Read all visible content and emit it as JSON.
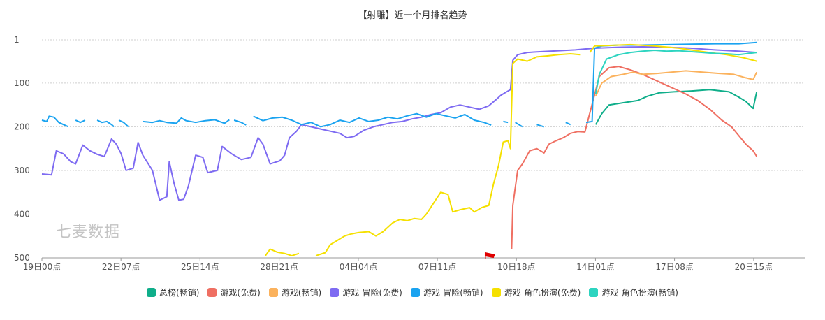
{
  "chart_data": {
    "type": "line",
    "title": "【射雕】近一个月排名趋势",
    "watermark": "七麦数据",
    "y_inverted": true,
    "ylim": [
      1,
      500
    ],
    "yticks": [
      1,
      100,
      200,
      300,
      400,
      500
    ],
    "x_range_days": [
      0,
      31.75
    ],
    "xticks": [
      {
        "label": "19日00点",
        "day": 0
      },
      {
        "label": "22日07点",
        "day": 3.29
      },
      {
        "label": "25日14点",
        "day": 6.58
      },
      {
        "label": "28日21点",
        "day": 9.875
      },
      {
        "label": "04日04点",
        "day": 13.17
      },
      {
        "label": "07日11点",
        "day": 16.46
      },
      {
        "label": "10日18点",
        "day": 19.75
      },
      {
        "label": "14日01点",
        "day": 23.04
      },
      {
        "label": "17日08点",
        "day": 26.33
      },
      {
        "label": "20日15点",
        "day": 29.625
      }
    ],
    "grid": true,
    "legend_position": "bottom",
    "marker_day": 18.6,
    "series": [
      {
        "name": "总榜(畅销)",
        "color": "#0fae8a",
        "points": [
          [
            23.05,
            195
          ],
          [
            23.3,
            170
          ],
          [
            23.6,
            150
          ],
          [
            24.2,
            145
          ],
          [
            24.8,
            140
          ],
          [
            25.2,
            130
          ],
          [
            25.7,
            122
          ],
          [
            26.3,
            120
          ],
          [
            27.0,
            118
          ],
          [
            27.8,
            115
          ],
          [
            28.6,
            120
          ],
          [
            29.0,
            132
          ],
          [
            29.3,
            142
          ],
          [
            29.6,
            158
          ],
          [
            29.75,
            120
          ]
        ]
      },
      {
        "name": "游戏(免费)",
        "color": "#ef6f62",
        "points": [
          [
            19.55,
            480
          ],
          [
            19.6,
            380
          ],
          [
            19.8,
            300
          ],
          [
            20.0,
            285
          ],
          [
            20.3,
            255
          ],
          [
            20.6,
            250
          ],
          [
            20.9,
            260
          ],
          [
            21.1,
            240
          ],
          [
            21.4,
            232
          ],
          [
            21.7,
            225
          ],
          [
            22.0,
            215
          ],
          [
            22.3,
            211
          ],
          [
            22.6,
            212
          ],
          [
            23.2,
            85
          ],
          [
            23.6,
            65
          ],
          [
            24.0,
            62
          ],
          [
            24.5,
            70
          ],
          [
            25.0,
            80
          ],
          [
            25.6,
            95
          ],
          [
            26.2,
            110
          ],
          [
            26.8,
            125
          ],
          [
            27.3,
            140
          ],
          [
            27.8,
            160
          ],
          [
            28.3,
            185
          ],
          [
            28.7,
            200
          ],
          [
            29.0,
            220
          ],
          [
            29.3,
            240
          ],
          [
            29.6,
            255
          ],
          [
            29.75,
            268
          ]
        ]
      },
      {
        "name": "游戏(畅销)",
        "color": "#fbb25d",
        "points": [
          [
            23.05,
            130
          ],
          [
            23.3,
            100
          ],
          [
            23.7,
            85
          ],
          [
            24.2,
            80
          ],
          [
            24.6,
            75
          ],
          [
            25.0,
            80
          ],
          [
            25.6,
            78
          ],
          [
            26.2,
            75
          ],
          [
            26.8,
            72
          ],
          [
            27.5,
            75
          ],
          [
            28.2,
            78
          ],
          [
            28.8,
            80
          ],
          [
            29.3,
            88
          ],
          [
            29.6,
            92
          ],
          [
            29.75,
            75
          ]
        ]
      },
      {
        "name": "游戏-冒险(免费)",
        "color": "#7e6bf2",
        "points": [
          [
            0,
            308
          ],
          [
            0.4,
            310
          ],
          [
            0.6,
            255
          ],
          [
            0.9,
            262
          ],
          [
            1.2,
            280
          ],
          [
            1.4,
            285
          ],
          [
            1.7,
            242
          ],
          [
            2.0,
            255
          ],
          [
            2.3,
            263
          ],
          [
            2.6,
            268
          ],
          [
            2.9,
            228
          ],
          [
            3.1,
            240
          ],
          [
            3.3,
            262
          ],
          [
            3.5,
            300
          ],
          [
            3.8,
            295
          ],
          [
            4.0,
            236
          ],
          [
            4.2,
            265
          ],
          [
            4.6,
            300
          ],
          [
            4.9,
            368
          ],
          [
            5.2,
            360
          ],
          [
            5.3,
            280
          ],
          [
            5.5,
            330
          ],
          [
            5.7,
            368
          ],
          [
            5.9,
            366
          ],
          [
            6.1,
            335
          ],
          [
            6.4,
            265
          ],
          [
            6.7,
            270
          ],
          [
            6.9,
            305
          ],
          [
            7.3,
            300
          ],
          [
            7.5,
            245
          ],
          [
            7.9,
            262
          ],
          [
            8.3,
            275
          ],
          [
            8.7,
            270
          ],
          [
            9.0,
            225
          ],
          [
            9.2,
            240
          ],
          [
            9.5,
            285
          ],
          [
            9.9,
            278
          ],
          [
            10.1,
            265
          ],
          [
            10.3,
            225
          ],
          [
            10.6,
            210
          ],
          [
            10.8,
            195
          ],
          [
            11.2,
            200
          ],
          [
            11.6,
            205
          ],
          [
            12.0,
            210
          ],
          [
            12.4,
            215
          ],
          [
            12.7,
            225
          ],
          [
            13.0,
            222
          ],
          [
            13.4,
            208
          ],
          [
            13.8,
            200
          ],
          [
            14.2,
            195
          ],
          [
            14.6,
            190
          ],
          [
            15.0,
            188
          ],
          [
            15.4,
            182
          ],
          [
            15.8,
            178
          ],
          [
            16.2,
            172
          ],
          [
            16.6,
            168
          ],
          [
            17.0,
            155
          ],
          [
            17.4,
            150
          ],
          [
            17.8,
            155
          ],
          [
            18.2,
            160
          ],
          [
            18.6,
            152
          ],
          [
            18.9,
            138
          ],
          [
            19.1,
            128
          ],
          [
            19.4,
            118
          ],
          [
            19.5,
            115
          ],
          [
            19.6,
            48
          ],
          [
            19.8,
            35
          ],
          [
            20.2,
            30
          ],
          [
            20.8,
            28
          ],
          [
            21.5,
            26
          ],
          [
            22.2,
            24
          ],
          [
            22.6,
            22
          ],
          [
            23.1,
            20
          ],
          [
            24,
            18
          ],
          [
            25,
            17
          ],
          [
            26,
            18
          ],
          [
            27,
            20
          ],
          [
            28,
            24
          ],
          [
            29,
            27
          ],
          [
            29.75,
            30
          ]
        ]
      },
      {
        "name": "游戏-冒险(畅销)",
        "color": "#1aa3f0",
        "segments": [
          [
            [
              0,
              185
            ],
            [
              0.2,
              188
            ],
            [
              0.3,
              176
            ],
            [
              0.5,
              178
            ],
            [
              0.7,
              190
            ],
            [
              0.9,
              195
            ],
            [
              1.1,
              200
            ]
          ],
          [
            [
              1.4,
              185
            ],
            [
              1.6,
              190
            ],
            [
              1.8,
              185
            ]
          ],
          [
            [
              2.3,
              185
            ],
            [
              2.5,
              190
            ],
            [
              2.7,
              188
            ],
            [
              2.9,
              195
            ],
            [
              3.0,
              200
            ]
          ],
          [
            [
              3.2,
              185
            ],
            [
              3.4,
              190
            ],
            [
              3.6,
              200
            ]
          ],
          [
            [
              4.2,
              188
            ],
            [
              4.6,
              190
            ],
            [
              4.9,
              186
            ],
            [
              5.2,
              190
            ],
            [
              5.6,
              192
            ],
            [
              5.8,
              180
            ],
            [
              6.0,
              186
            ],
            [
              6.4,
              190
            ],
            [
              6.8,
              186
            ],
            [
              7.2,
              184
            ],
            [
              7.6,
              192
            ],
            [
              7.8,
              184
            ]
          ],
          [
            [
              8.0,
              185
            ],
            [
              8.3,
              190
            ],
            [
              8.5,
              196
            ]
          ],
          [
            [
              8.8,
              176
            ],
            [
              9.2,
              186
            ],
            [
              9.6,
              180
            ],
            [
              10.0,
              178
            ],
            [
              10.4,
              185
            ],
            [
              10.8,
              195
            ],
            [
              11.2,
              190
            ],
            [
              11.6,
              200
            ],
            [
              12.0,
              195
            ],
            [
              12.4,
              185
            ],
            [
              12.8,
              190
            ],
            [
              13.2,
              180
            ],
            [
              13.6,
              188
            ],
            [
              14.0,
              185
            ],
            [
              14.4,
              178
            ],
            [
              14.8,
              182
            ],
            [
              15.2,
              175
            ],
            [
              15.6,
              170
            ],
            [
              16.0,
              178
            ],
            [
              16.4,
              170
            ],
            [
              16.8,
              175
            ],
            [
              17.2,
              180
            ],
            [
              17.6,
              172
            ],
            [
              18.0,
              185
            ],
            [
              18.4,
              190
            ],
            [
              18.7,
              196
            ]
          ],
          [
            [
              19.2,
              188
            ],
            [
              19.4,
              190
            ]
          ],
          [
            [
              19.7,
              190
            ],
            [
              20.0,
              200
            ]
          ],
          [
            [
              20.6,
              195
            ],
            [
              20.9,
              200
            ]
          ],
          [
            [
              21.8,
              190
            ],
            [
              22.0,
              195
            ]
          ],
          [
            [
              22.65,
              190
            ],
            [
              22.9,
              188
            ],
            [
              23.0,
              20
            ],
            [
              23.3,
              15
            ],
            [
              24,
              13
            ],
            [
              25,
              13
            ],
            [
              26,
              12
            ],
            [
              27,
              11
            ],
            [
              28,
              10
            ],
            [
              29,
              10
            ],
            [
              29.75,
              7
            ]
          ]
        ]
      },
      {
        "name": "游戏-角色扮演(免费)",
        "color": "#f5e000",
        "segments": [
          [
            [
              9.3,
              495
            ],
            [
              9.5,
              480
            ],
            [
              9.8,
              487
            ],
            [
              10.1,
              490
            ],
            [
              10.4,
              495
            ],
            [
              10.7,
              490
            ]
          ],
          [
            [
              11.4,
              495
            ],
            [
              11.8,
              488
            ],
            [
              12.0,
              470
            ],
            [
              12.3,
              460
            ],
            [
              12.6,
              450
            ],
            [
              12.9,
              445
            ],
            [
              13.2,
              442
            ],
            [
              13.6,
              440
            ],
            [
              13.9,
              450
            ],
            [
              14.2,
              440
            ],
            [
              14.6,
              420
            ],
            [
              14.9,
              412
            ],
            [
              15.2,
              415
            ],
            [
              15.5,
              410
            ],
            [
              15.8,
              412
            ],
            [
              16.0,
              400
            ],
            [
              16.3,
              375
            ],
            [
              16.6,
              350
            ],
            [
              16.9,
              355
            ],
            [
              17.1,
              395
            ],
            [
              17.4,
              390
            ],
            [
              17.8,
              385
            ],
            [
              18.0,
              395
            ],
            [
              18.3,
              385
            ],
            [
              18.6,
              380
            ],
            [
              18.8,
              330
            ],
            [
              19.0,
              290
            ],
            [
              19.2,
              235
            ],
            [
              19.4,
              232
            ],
            [
              19.5,
              250
            ],
            [
              19.6,
              55
            ],
            [
              19.8,
              45
            ],
            [
              20.2,
              50
            ],
            [
              20.6,
              40
            ],
            [
              21.0,
              38
            ],
            [
              21.5,
              35
            ],
            [
              22.0,
              33
            ],
            [
              22.4,
              35
            ]
          ],
          [
            [
              22.8,
              30
            ],
            [
              23.0,
              15
            ],
            [
              23.5,
              14
            ],
            [
              24.5,
              12
            ],
            [
              25.5,
              15
            ],
            [
              26.5,
              20
            ],
            [
              27.5,
              28
            ],
            [
              28.5,
              35
            ],
            [
              29.2,
              42
            ],
            [
              29.75,
              50
            ]
          ]
        ]
      },
      {
        "name": "游戏-角色扮演(畅销)",
        "color": "#2dd4c0",
        "points": [
          [
            23.05,
            125
          ],
          [
            23.2,
            80
          ],
          [
            23.5,
            45
          ],
          [
            24,
            35
          ],
          [
            24.5,
            30
          ],
          [
            25,
            27
          ],
          [
            25.5,
            25
          ],
          [
            26,
            27
          ],
          [
            26.5,
            26
          ],
          [
            27,
            28
          ],
          [
            27.5,
            30
          ],
          [
            28,
            32
          ],
          [
            28.5,
            33
          ],
          [
            29,
            35
          ],
          [
            29.75,
            30
          ]
        ]
      }
    ]
  }
}
